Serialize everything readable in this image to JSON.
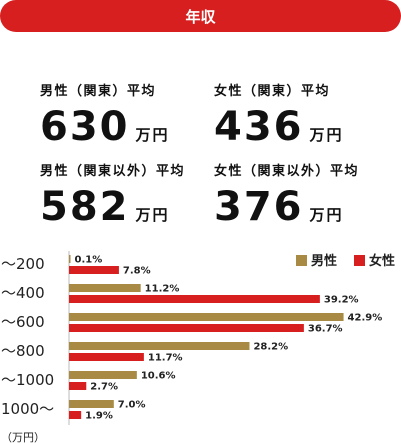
{
  "header": {
    "title": "年収"
  },
  "stats": [
    {
      "label": "男性（関東）平均",
      "value": "630",
      "unit": "万円"
    },
    {
      "label": "女性（関東）平均",
      "value": "436",
      "unit": "万円"
    },
    {
      "label": "男性（関東以外）平均",
      "value": "582",
      "unit": "万円"
    },
    {
      "label": "女性（関東以外）平均",
      "value": "376",
      "unit": "万円"
    }
  ],
  "chart_data": {
    "type": "bar",
    "orientation": "horizontal",
    "categories": [
      "〜200",
      "〜400",
      "〜600",
      "〜800",
      "〜1000",
      "1000〜"
    ],
    "series": [
      {
        "name": "男性",
        "color": "#a88a45",
        "values": [
          0.1,
          11.2,
          42.9,
          28.2,
          10.6,
          7.0
        ],
        "labels": [
          "0.1%",
          "11.2%",
          "42.9%",
          "28.2%",
          "10.6%",
          "7.0%"
        ]
      },
      {
        "name": "女性",
        "color": "#d71f1f",
        "values": [
          7.8,
          39.2,
          36.7,
          11.7,
          2.7,
          1.9
        ],
        "labels": [
          "7.8%",
          "39.2%",
          "36.7%",
          "11.7%",
          "2.7%",
          "1.9%"
        ]
      }
    ],
    "xlim": [
      0,
      45
    ],
    "legend_position": "top-right",
    "unit_note": "（万円）"
  }
}
